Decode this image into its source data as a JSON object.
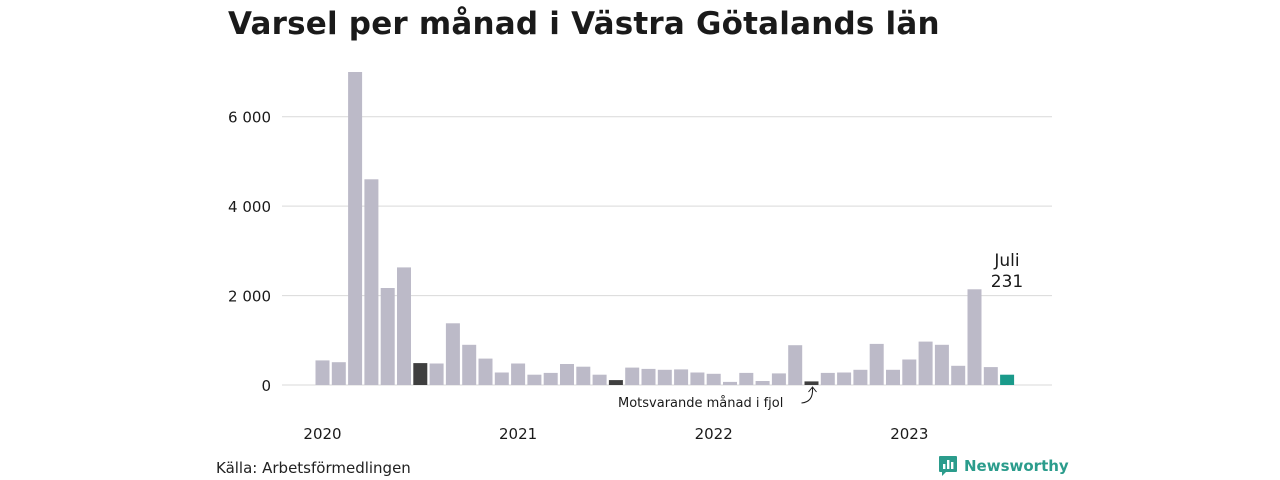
{
  "chart_data": {
    "type": "bar",
    "title": "Varsel per månad i Västra Götalands län",
    "xlabel": "",
    "ylabel": "",
    "ylim": [
      0,
      7000
    ],
    "yticks": [
      0,
      2000,
      4000,
      6000
    ],
    "ytick_labels": [
      "0",
      "2 000",
      "4 000",
      "6 000"
    ],
    "grid": true,
    "categories": [
      "2020-01",
      "2020-02",
      "2020-03",
      "2020-04",
      "2020-05",
      "2020-06",
      "2020-07",
      "2020-08",
      "2020-09",
      "2020-10",
      "2020-11",
      "2020-12",
      "2021-01",
      "2021-02",
      "2021-03",
      "2021-04",
      "2021-05",
      "2021-06",
      "2021-07",
      "2021-08",
      "2021-09",
      "2021-10",
      "2021-11",
      "2021-12",
      "2022-01",
      "2022-02",
      "2022-03",
      "2022-04",
      "2022-05",
      "2022-06",
      "2022-07",
      "2022-08",
      "2022-09",
      "2022-10",
      "2022-11",
      "2022-12",
      "2023-01",
      "2023-02",
      "2023-03",
      "2023-04",
      "2023-05",
      "2023-06",
      "2023-07"
    ],
    "values": [
      550,
      510,
      7000,
      4600,
      2170,
      2630,
      490,
      480,
      1380,
      900,
      590,
      280,
      480,
      230,
      270,
      470,
      410,
      230,
      110,
      390,
      360,
      340,
      350,
      280,
      250,
      70,
      270,
      90,
      260,
      890,
      80,
      270,
      280,
      340,
      920,
      340,
      570,
      970,
      900,
      430,
      2140,
      400,
      231
    ],
    "highlighted_july": [
      "2020-07",
      "2021-07",
      "2022-07"
    ],
    "current": "2023-07",
    "x_year_labels": [
      "2020",
      "2021",
      "2022",
      "2023"
    ],
    "callout": {
      "month": "Juli",
      "value": "231"
    },
    "annotation": "Motsvarande månad i fjol",
    "colors": {
      "default": "#bcbac8",
      "july": "#3f3f3f",
      "current": "#1a9a8a",
      "grid": "#d9d9d9"
    }
  },
  "source": "Källa: Arbetsförmedlingen",
  "brand": {
    "name": "Newsworthy",
    "icon": "bar-chart-speech-icon",
    "color": "#2b9c8c"
  }
}
